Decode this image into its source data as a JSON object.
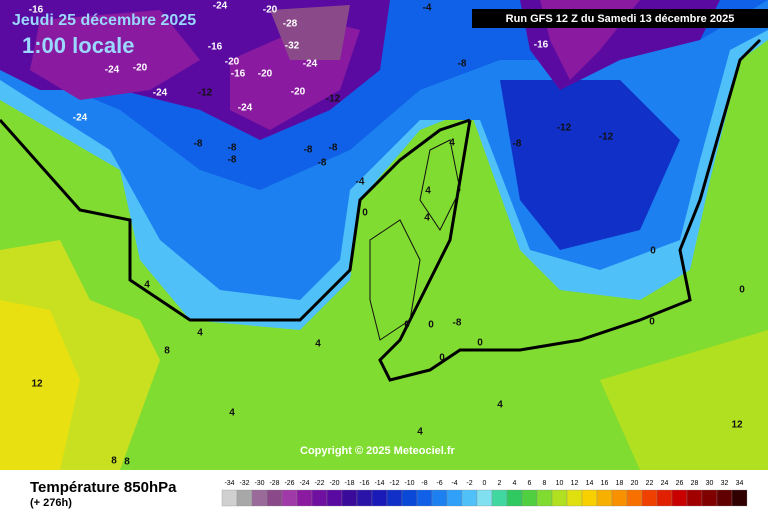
{
  "header": {
    "date": "Jeudi 25 décembre 2025",
    "time": "1:00 locale",
    "run": "Run GFS 12 Z du Samedi 13 décembre 2025"
  },
  "copyright": "Copyright © 2025 Meteociel.fr",
  "footer": {
    "title": "Température 850hPa",
    "lead": "(+ 276h)"
  },
  "map_labels": [
    -16,
    -24,
    -20,
    -24,
    -24,
    -16,
    -12,
    -8,
    -24,
    -20,
    -28,
    -32,
    -24,
    -24,
    -20,
    -16,
    -20,
    -12,
    -20,
    -8,
    -8,
    -8,
    -8,
    -8,
    -4,
    -8,
    -16,
    -12,
    -12,
    -8,
    -4,
    0,
    4,
    4,
    4,
    0,
    0,
    0,
    4,
    4,
    4,
    8,
    12,
    8,
    12,
    0,
    0,
    0,
    4,
    4,
    8,
    -8,
    0,
    4
  ],
  "legend": [
    {
      "value": -34,
      "color": "#d0d0d0"
    },
    {
      "value": -32,
      "color": "#a8a8a8"
    },
    {
      "value": -30,
      "color": "#9a6a9a"
    },
    {
      "value": -28,
      "color": "#8a4a8a"
    },
    {
      "value": -26,
      "color": "#a03aa8"
    },
    {
      "value": -24,
      "color": "#8a1aa0"
    },
    {
      "value": -22,
      "color": "#7010a0"
    },
    {
      "value": -20,
      "color": "#5a0aa0"
    },
    {
      "value": -18,
      "color": "#3a0a9a"
    },
    {
      "value": -16,
      "color": "#2a14a8"
    },
    {
      "value": -14,
      "color": "#1a1ab8"
    },
    {
      "value": -12,
      "color": "#1030c8"
    },
    {
      "value": -10,
      "color": "#0a48d8"
    },
    {
      "value": -8,
      "color": "#1060e8"
    },
    {
      "value": -6,
      "color": "#1c80f0"
    },
    {
      "value": -4,
      "color": "#30a0f8"
    },
    {
      "value": -2,
      "color": "#50c0f8"
    },
    {
      "value": 0,
      "color": "#80e0f0"
    },
    {
      "value": 2,
      "color": "#40d8a0"
    },
    {
      "value": 4,
      "color": "#30c860"
    },
    {
      "value": 6,
      "color": "#50d040"
    },
    {
      "value": 8,
      "color": "#80dc30"
    },
    {
      "value": 10,
      "color": "#b0e020"
    },
    {
      "value": 12,
      "color": "#e0e010"
    },
    {
      "value": 14,
      "color": "#f8d000"
    },
    {
      "value": 16,
      "color": "#f8b000"
    },
    {
      "value": 18,
      "color": "#f89000"
    },
    {
      "value": 20,
      "color": "#f87000"
    },
    {
      "value": 22,
      "color": "#f04000"
    },
    {
      "value": 24,
      "color": "#e02000"
    },
    {
      "value": 26,
      "color": "#c80000"
    },
    {
      "value": 28,
      "color": "#a00000"
    },
    {
      "value": 30,
      "color": "#800000"
    },
    {
      "value": 32,
      "color": "#600000"
    },
    {
      "value": 34,
      "color": "#300000"
    }
  ]
}
